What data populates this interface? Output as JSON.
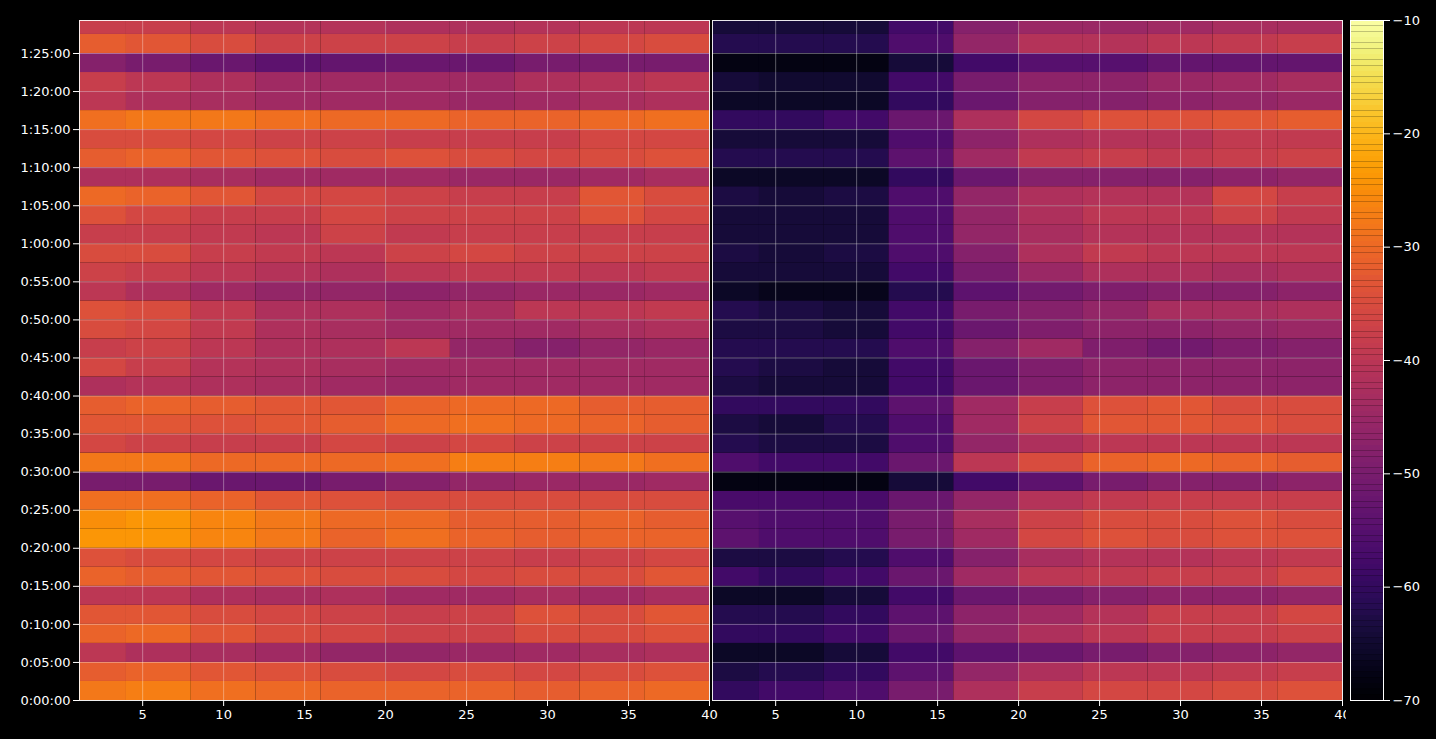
{
  "chart_data": {
    "type": "heatmap",
    "color": "inferno",
    "grid": true,
    "xlim": [
      1.1,
      40
    ],
    "ylim": [
      0,
      5360
    ],
    "xticks": [
      5,
      10,
      15,
      20,
      25,
      30,
      35,
      40
    ],
    "yticks": [
      {
        "value": 0,
        "label": "0:00:00"
      },
      {
        "value": 300,
        "label": "0:05:00"
      },
      {
        "value": 600,
        "label": "0:10:00"
      },
      {
        "value": 900,
        "label": "0:15:00"
      },
      {
        "value": 1200,
        "label": "0:20:00"
      },
      {
        "value": 1500,
        "label": "0:25:00"
      },
      {
        "value": 1800,
        "label": "0:30:00"
      },
      {
        "value": 2100,
        "label": "0:35:00"
      },
      {
        "value": 2400,
        "label": "0:40:00"
      },
      {
        "value": 2700,
        "label": "0:45:00"
      },
      {
        "value": 3000,
        "label": "0:50:00"
      },
      {
        "value": 3300,
        "label": "0:55:00"
      },
      {
        "value": 3600,
        "label": "1:00:00"
      },
      {
        "value": 3900,
        "label": "1:05:00"
      },
      {
        "value": 4200,
        "label": "1:10:00"
      },
      {
        "value": 4500,
        "label": "1:15:00"
      },
      {
        "value": 4800,
        "label": "1:20:00"
      },
      {
        "value": 5100,
        "label": "1:25:00"
      }
    ],
    "x_edges": [
      0,
      4,
      8,
      12,
      16,
      20,
      24,
      28,
      32,
      36,
      40
    ],
    "y_edges": [
      0,
      150,
      300,
      450,
      600,
      750,
      900,
      1050,
      1200,
      1350,
      1500,
      1650,
      1800,
      1950,
      2100,
      2250,
      2400,
      2550,
      2700,
      2850,
      3000,
      3150,
      3300,
      3450,
      3600,
      3750,
      3900,
      4050,
      4200,
      4350,
      4500,
      4650,
      4800,
      4950,
      5100,
      5250,
      5400
    ],
    "colorbar": {
      "range": [
        -70,
        -10
      ],
      "ticks": [
        {
          "value": -70,
          "label": "−70"
        },
        {
          "value": -60,
          "label": "−60"
        },
        {
          "value": -50,
          "label": "−50"
        },
        {
          "value": -40,
          "label": "−40"
        },
        {
          "value": -30,
          "label": "−30"
        },
        {
          "value": -20,
          "label": "−20"
        },
        {
          "value": -10,
          "label": "−10"
        }
      ]
    },
    "panels": [
      {
        "values": [
          [
            -28,
            -27,
            -29,
            -30,
            -31,
            -31,
            -31,
            -32,
            -31,
            -30
          ],
          [
            -32,
            -31,
            -33,
            -34,
            -35,
            -36,
            -35,
            -36,
            -35,
            -34
          ],
          [
            -40,
            -42,
            -43,
            -44,
            -46,
            -46,
            -45,
            -44,
            -43,
            -42
          ],
          [
            -31,
            -30,
            -33,
            -35,
            -36,
            -37,
            -37,
            -35,
            -35,
            -34
          ],
          [
            -33,
            -33,
            -35,
            -36,
            -37,
            -38,
            -37,
            -34,
            -35,
            -33
          ],
          [
            -40,
            -40,
            -42,
            -43,
            -42,
            -44,
            -44,
            -43,
            -44,
            -43
          ],
          [
            -31,
            -32,
            -33,
            -34,
            -35,
            -35,
            -36,
            -35,
            -35,
            -33
          ],
          [
            -34,
            -35,
            -36,
            -37,
            -37,
            -37,
            -37,
            -38,
            -37,
            -36
          ],
          [
            -24,
            -24,
            -26,
            -28,
            -31,
            -29,
            -31,
            -32,
            -31,
            -31
          ],
          [
            -25,
            -24,
            -26,
            -28,
            -30,
            -30,
            -32,
            -32,
            -31,
            -32
          ],
          [
            -29,
            -29,
            -31,
            -33,
            -34,
            -35,
            -35,
            -35,
            -35,
            -35
          ],
          [
            -50,
            -50,
            -52,
            -52,
            -50,
            -48,
            -46,
            -45,
            -45,
            -44
          ],
          [
            -28,
            -28,
            -30,
            -30,
            -30,
            -29,
            -27,
            -27,
            -28,
            -29
          ],
          [
            -36,
            -37,
            -38,
            -38,
            -36,
            -37,
            -36,
            -37,
            -37,
            -37
          ],
          [
            -33,
            -33,
            -34,
            -33,
            -32,
            -30,
            -29,
            -30,
            -31,
            -32
          ],
          [
            -32,
            -31,
            -32,
            -33,
            -33,
            -31,
            -30,
            -30,
            -32,
            -32
          ],
          [
            -42,
            -41,
            -42,
            -43,
            -44,
            -45,
            -44,
            -44,
            -44,
            -44
          ],
          [
            -36,
            -38,
            -41,
            -42,
            -43,
            -44,
            -44,
            -44,
            -44,
            -44
          ],
          [
            -38,
            -37,
            -40,
            -42,
            -42,
            -40,
            -46,
            -48,
            -46,
            -45
          ],
          [
            -35,
            -36,
            -39,
            -42,
            -43,
            -44,
            -44,
            -44,
            -43,
            -42
          ],
          [
            -34,
            -35,
            -39,
            -42,
            -42,
            -44,
            -43,
            -40,
            -40,
            -39
          ],
          [
            -40,
            -42,
            -44,
            -46,
            -46,
            -47,
            -46,
            -45,
            -45,
            -44
          ],
          [
            -37,
            -38,
            -40,
            -41,
            -42,
            -40,
            -39,
            -39,
            -40,
            -39
          ],
          [
            -35,
            -35,
            -38,
            -39,
            -40,
            -37,
            -36,
            -37,
            -37,
            -37
          ],
          [
            -38,
            -38,
            -39,
            -40,
            -37,
            -39,
            -38,
            -38,
            -38,
            -38
          ],
          [
            -34,
            -36,
            -38,
            -38,
            -36,
            -37,
            -37,
            -37,
            -34,
            -36
          ],
          [
            -30,
            -31,
            -33,
            -36,
            -36,
            -37,
            -38,
            -38,
            -33,
            -35
          ],
          [
            -42,
            -42,
            -43,
            -44,
            -44,
            -44,
            -45,
            -45,
            -44,
            -43
          ],
          [
            -32,
            -31,
            -33,
            -34,
            -35,
            -34,
            -35,
            -36,
            -35,
            -34
          ],
          [
            -35,
            -35,
            -36,
            -37,
            -37,
            -38,
            -38,
            -38,
            -36,
            -36
          ],
          [
            -29,
            -28,
            -28,
            -29,
            -30,
            -30,
            -31,
            -31,
            -30,
            -29
          ],
          [
            -40,
            -42,
            -43,
            -44,
            -44,
            -44,
            -45,
            -44,
            -43,
            -42
          ],
          [
            -38,
            -40,
            -42,
            -44,
            -44,
            -44,
            -44,
            -42,
            -41,
            -40
          ],
          [
            -48,
            -50,
            -52,
            -54,
            -53,
            -52,
            -52,
            -50,
            -50,
            -50
          ],
          [
            -32,
            -33,
            -35,
            -37,
            -37,
            -37,
            -38,
            -37,
            -36,
            -35
          ],
          [
            -38,
            -38,
            -40,
            -41,
            -41,
            -42,
            -42,
            -41,
            -40,
            -40
          ]
        ]
      },
      {
        "values": [
          [
            -60,
            -58,
            -56,
            -50,
            -42,
            -38,
            -36,
            -36,
            -35,
            -34
          ],
          [
            -63,
            -62,
            -60,
            -54,
            -46,
            -42,
            -40,
            -40,
            -39,
            -38
          ],
          [
            -66,
            -66,
            -64,
            -58,
            -54,
            -52,
            -50,
            -48,
            -47,
            -46
          ],
          [
            -60,
            -60,
            -58,
            -52,
            -46,
            -42,
            -40,
            -38,
            -38,
            -37
          ],
          [
            -62,
            -62,
            -60,
            -54,
            -47,
            -44,
            -41,
            -38,
            -38,
            -36
          ],
          [
            -66,
            -66,
            -64,
            -58,
            -52,
            -50,
            -48,
            -47,
            -47,
            -46
          ],
          [
            -58,
            -60,
            -58,
            -52,
            -44,
            -40,
            -39,
            -38,
            -38,
            -36
          ],
          [
            -63,
            -63,
            -62,
            -56,
            -48,
            -43,
            -41,
            -41,
            -40,
            -39
          ],
          [
            -54,
            -56,
            -56,
            -50,
            -44,
            -36,
            -34,
            -35,
            -34,
            -34
          ],
          [
            -55,
            -56,
            -56,
            -50,
            -43,
            -37,
            -35,
            -35,
            -34,
            -35
          ],
          [
            -57,
            -57,
            -57,
            -52,
            -46,
            -41,
            -39,
            -38,
            -38,
            -38
          ],
          [
            -68,
            -68,
            -68,
            -64,
            -58,
            -54,
            -50,
            -48,
            -48,
            -47
          ],
          [
            -56,
            -58,
            -58,
            -52,
            -40,
            -35,
            -31,
            -30,
            -31,
            -32
          ],
          [
            -62,
            -63,
            -63,
            -56,
            -46,
            -42,
            -40,
            -40,
            -40,
            -40
          ],
          [
            -63,
            -64,
            -62,
            -56,
            -44,
            -37,
            -33,
            -33,
            -34,
            -35
          ],
          [
            -60,
            -60,
            -60,
            -54,
            -44,
            -38,
            -34,
            -33,
            -35,
            -35
          ],
          [
            -63,
            -64,
            -64,
            -58,
            -52,
            -49,
            -47,
            -47,
            -47,
            -47
          ],
          [
            -62,
            -63,
            -64,
            -58,
            -52,
            -49,
            -47,
            -47,
            -47,
            -47
          ],
          [
            -62,
            -62,
            -62,
            -56,
            -48,
            -44,
            -49,
            -51,
            -49,
            -48
          ],
          [
            -63,
            -63,
            -64,
            -58,
            -52,
            -49,
            -47,
            -47,
            -46,
            -45
          ],
          [
            -62,
            -63,
            -64,
            -58,
            -50,
            -48,
            -46,
            -43,
            -43,
            -42
          ],
          [
            -66,
            -67,
            -67,
            -62,
            -54,
            -51,
            -49,
            -48,
            -48,
            -47
          ],
          [
            -64,
            -64,
            -64,
            -58,
            -50,
            -45,
            -42,
            -42,
            -43,
            -42
          ],
          [
            -63,
            -64,
            -63,
            -56,
            -48,
            -42,
            -39,
            -40,
            -40,
            -40
          ],
          [
            -64,
            -64,
            -64,
            -56,
            -46,
            -43,
            -41,
            -41,
            -41,
            -41
          ],
          [
            -64,
            -64,
            -64,
            -56,
            -46,
            -42,
            -40,
            -40,
            -37,
            -39
          ],
          [
            -63,
            -64,
            -63,
            -56,
            -46,
            -42,
            -41,
            -41,
            -36,
            -38
          ],
          [
            -66,
            -66,
            -66,
            -60,
            -52,
            -48,
            -48,
            -48,
            -47,
            -46
          ],
          [
            -62,
            -62,
            -62,
            -54,
            -44,
            -39,
            -38,
            -39,
            -38,
            -37
          ],
          [
            -64,
            -64,
            -64,
            -56,
            -47,
            -42,
            -41,
            -41,
            -39,
            -39
          ],
          [
            -60,
            -60,
            -58,
            -52,
            -42,
            -36,
            -34,
            -34,
            -33,
            -32
          ],
          [
            -66,
            -66,
            -66,
            -60,
            -52,
            -48,
            -48,
            -47,
            -46,
            -45
          ],
          [
            -64,
            -65,
            -65,
            -58,
            -50,
            -47,
            -47,
            -45,
            -44,
            -43
          ],
          [
            -68,
            -68,
            -68,
            -64,
            -58,
            -55,
            -55,
            -53,
            -53,
            -53
          ],
          [
            -62,
            -62,
            -62,
            -56,
            -46,
            -41,
            -41,
            -40,
            -39,
            -38
          ],
          [
            -64,
            -64,
            -64,
            -58,
            -48,
            -45,
            -45,
            -44,
            -43,
            -43
          ]
        ]
      }
    ]
  }
}
